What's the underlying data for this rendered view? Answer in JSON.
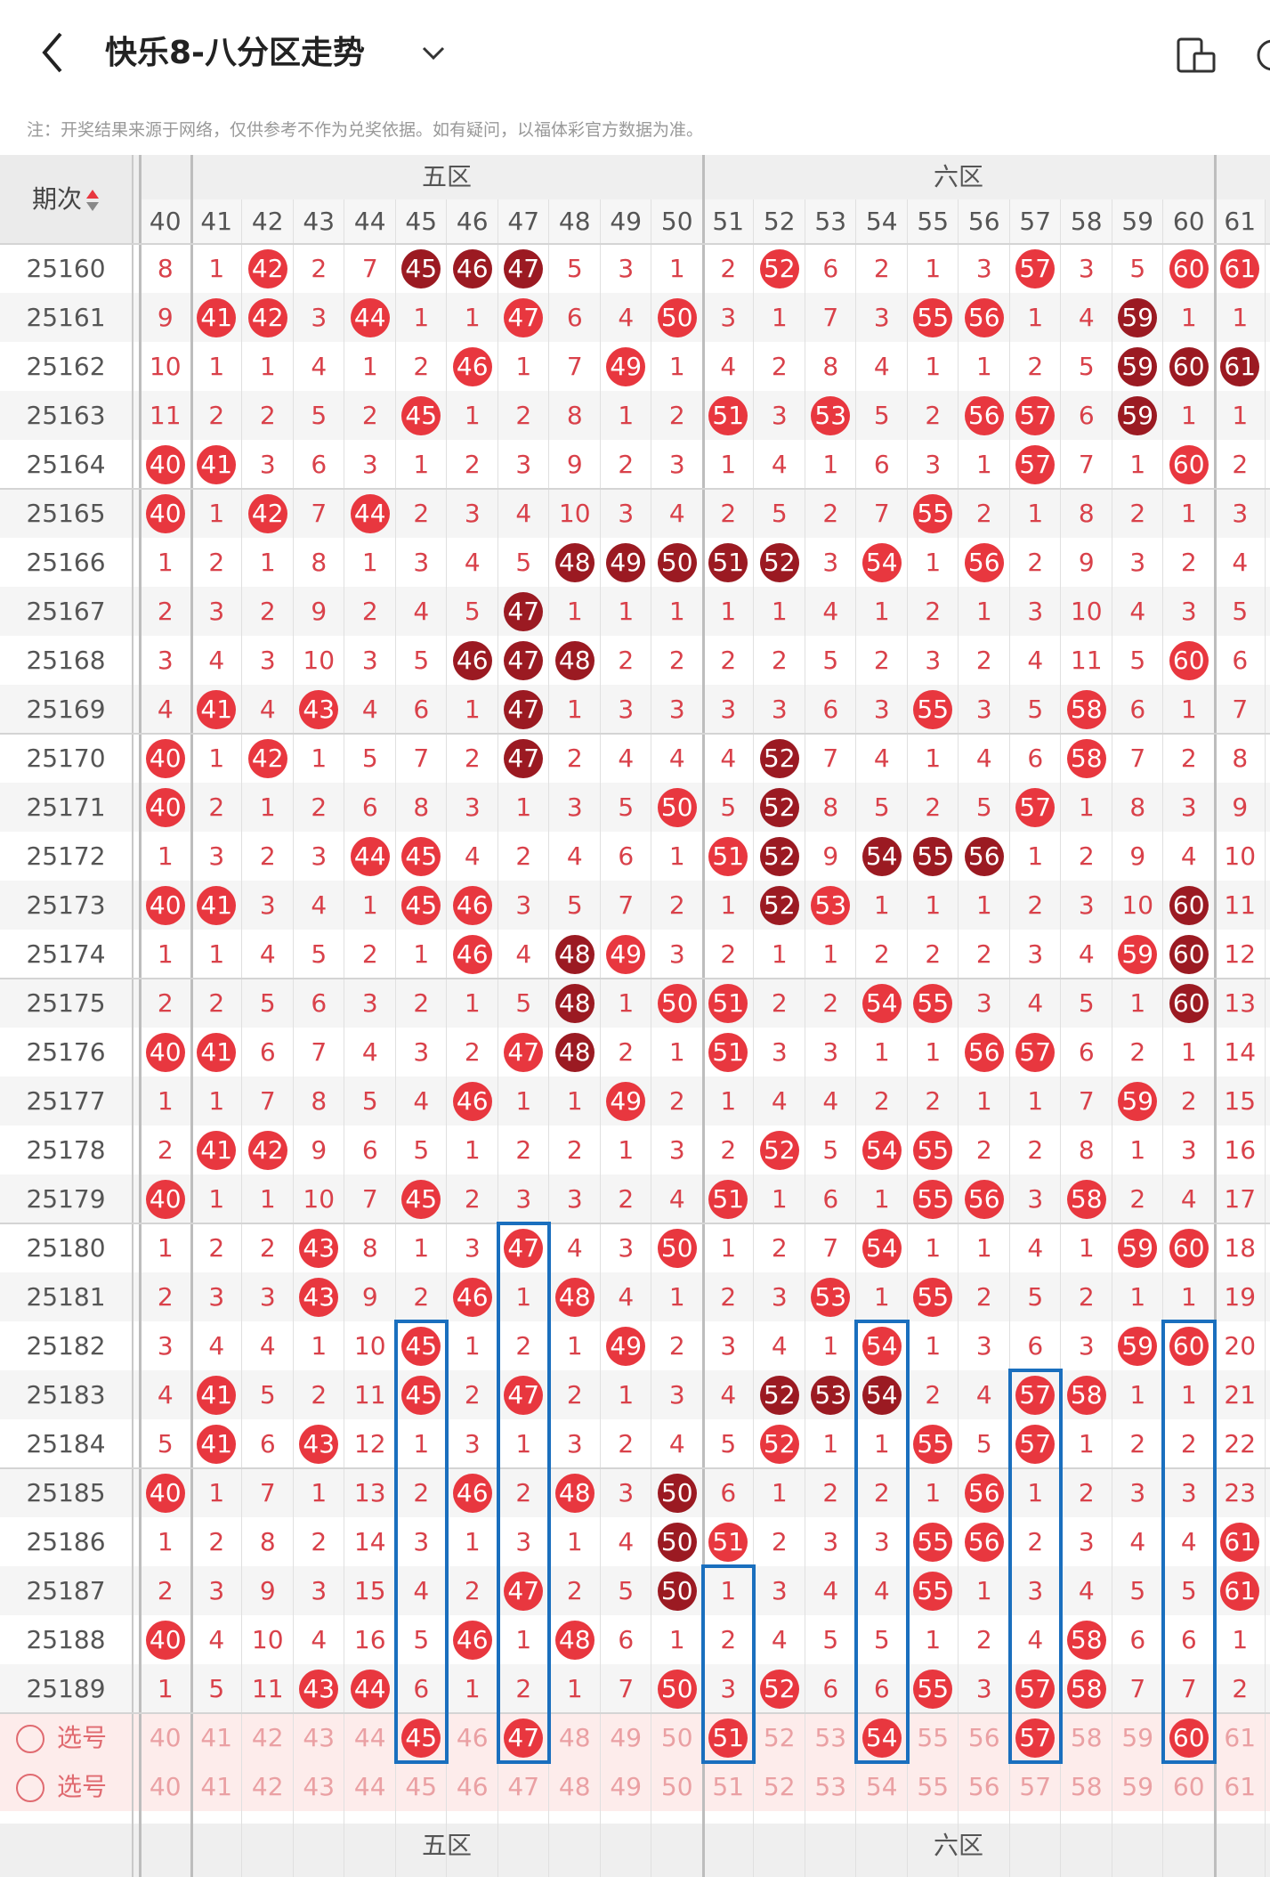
{
  "header": {
    "title": "快乐8-八分区走势",
    "back_icon": "chevron-left-icon",
    "dropdown_icon": "chevron-down-icon",
    "tool_icon": "device-layout-icon"
  },
  "notice": "注：开奖结果来源于网络，仅供参考不作为兑奖依据。如有疑问，以福体彩官方数据为准。",
  "table": {
    "period_label": "期次",
    "zones": [
      "五区",
      "六区"
    ],
    "columns": [
      40,
      41,
      42,
      43,
      44,
      45,
      46,
      47,
      48,
      49,
      50,
      51,
      52,
      53,
      54,
      55,
      56,
      57,
      58,
      59,
      60,
      61
    ],
    "rows": [
      {
        "issue": "25160",
        "cells": [
          "8",
          "1",
          "42",
          "2",
          "7",
          "45",
          "46",
          "47",
          "5",
          "3",
          "1",
          "2",
          "52",
          "6",
          "2",
          "1",
          "3",
          "57",
          "3",
          "5",
          "60",
          "61"
        ],
        "hits": [
          42,
          45,
          46,
          47,
          52,
          57,
          60,
          61
        ],
        "dark": [
          45,
          46,
          47
        ]
      },
      {
        "issue": "25161",
        "cells": [
          "9",
          "41",
          "42",
          "3",
          "44",
          "1",
          "1",
          "47",
          "6",
          "4",
          "50",
          "3",
          "1",
          "7",
          "3",
          "55",
          "56",
          "1",
          "4",
          "59",
          "1",
          "1"
        ],
        "hits": [
          41,
          42,
          44,
          47,
          50,
          55,
          56,
          59
        ],
        "dark": [
          59
        ]
      },
      {
        "issue": "25162",
        "cells": [
          "10",
          "1",
          "1",
          "4",
          "1",
          "2",
          "46",
          "1",
          "7",
          "49",
          "1",
          "4",
          "2",
          "8",
          "4",
          "1",
          "1",
          "2",
          "5",
          "59",
          "60",
          "61"
        ],
        "hits": [
          46,
          49,
          59,
          60,
          61
        ],
        "dark": [
          59,
          60,
          61
        ]
      },
      {
        "issue": "25163",
        "cells": [
          "11",
          "2",
          "2",
          "5",
          "2",
          "45",
          "1",
          "2",
          "8",
          "1",
          "2",
          "51",
          "3",
          "53",
          "5",
          "2",
          "56",
          "57",
          "6",
          "59",
          "1",
          "1"
        ],
        "hits": [
          45,
          51,
          53,
          56,
          57,
          59
        ],
        "dark": [
          59
        ]
      },
      {
        "issue": "25164",
        "cells": [
          "40",
          "41",
          "3",
          "6",
          "3",
          "1",
          "2",
          "3",
          "9",
          "2",
          "3",
          "1",
          "4",
          "1",
          "6",
          "3",
          "1",
          "57",
          "7",
          "1",
          "60",
          "2"
        ],
        "hits": [
          40,
          41,
          57,
          60
        ],
        "dark": []
      },
      {
        "issue": "25165",
        "cells": [
          "40",
          "1",
          "42",
          "7",
          "44",
          "2",
          "3",
          "4",
          "10",
          "3",
          "4",
          "2",
          "5",
          "2",
          "7",
          "55",
          "2",
          "1",
          "8",
          "2",
          "1",
          "3"
        ],
        "hits": [
          40,
          42,
          44,
          55
        ],
        "dark": []
      },
      {
        "issue": "25166",
        "cells": [
          "1",
          "2",
          "1",
          "8",
          "1",
          "3",
          "4",
          "5",
          "48",
          "49",
          "50",
          "51",
          "52",
          "3",
          "54",
          "1",
          "56",
          "2",
          "9",
          "3",
          "2",
          "4"
        ],
        "hits": [
          48,
          49,
          50,
          51,
          52,
          54,
          56
        ],
        "dark": [
          48,
          49,
          50,
          51,
          52
        ]
      },
      {
        "issue": "25167",
        "cells": [
          "2",
          "3",
          "2",
          "9",
          "2",
          "4",
          "5",
          "47",
          "1",
          "1",
          "1",
          "1",
          "1",
          "4",
          "1",
          "2",
          "1",
          "3",
          "10",
          "4",
          "3",
          "5"
        ],
        "hits": [
          47
        ],
        "dark": [
          47
        ]
      },
      {
        "issue": "25168",
        "cells": [
          "3",
          "4",
          "3",
          "10",
          "3",
          "5",
          "46",
          "47",
          "48",
          "2",
          "2",
          "2",
          "2",
          "5",
          "2",
          "3",
          "2",
          "4",
          "11",
          "5",
          "60",
          "6"
        ],
        "hits": [
          46,
          47,
          48,
          60
        ],
        "dark": [
          46,
          47,
          48
        ]
      },
      {
        "issue": "25169",
        "cells": [
          "4",
          "41",
          "4",
          "43",
          "4",
          "6",
          "1",
          "47",
          "1",
          "3",
          "3",
          "3",
          "3",
          "6",
          "3",
          "55",
          "3",
          "5",
          "58",
          "6",
          "1",
          "7"
        ],
        "hits": [
          41,
          43,
          47,
          55,
          58
        ],
        "dark": [
          47
        ]
      },
      {
        "issue": "25170",
        "cells": [
          "40",
          "1",
          "42",
          "1",
          "5",
          "7",
          "2",
          "47",
          "2",
          "4",
          "4",
          "4",
          "52",
          "7",
          "4",
          "1",
          "4",
          "6",
          "58",
          "7",
          "2",
          "8"
        ],
        "hits": [
          40,
          42,
          47,
          52,
          58
        ],
        "dark": [
          47,
          52
        ]
      },
      {
        "issue": "25171",
        "cells": [
          "40",
          "2",
          "1",
          "2",
          "6",
          "8",
          "3",
          "1",
          "3",
          "5",
          "50",
          "5",
          "52",
          "8",
          "5",
          "2",
          "5",
          "57",
          "1",
          "8",
          "3",
          "9"
        ],
        "hits": [
          40,
          50,
          52,
          57
        ],
        "dark": [
          52
        ]
      },
      {
        "issue": "25172",
        "cells": [
          "1",
          "3",
          "2",
          "3",
          "44",
          "45",
          "4",
          "2",
          "4",
          "6",
          "1",
          "51",
          "52",
          "9",
          "54",
          "55",
          "56",
          "1",
          "2",
          "9",
          "4",
          "10"
        ],
        "hits": [
          44,
          45,
          51,
          52,
          54,
          55,
          56
        ],
        "dark": [
          52,
          54,
          55,
          56
        ]
      },
      {
        "issue": "25173",
        "cells": [
          "40",
          "41",
          "3",
          "4",
          "1",
          "45",
          "46",
          "3",
          "5",
          "7",
          "2",
          "1",
          "52",
          "53",
          "1",
          "1",
          "1",
          "2",
          "3",
          "10",
          "60",
          "11"
        ],
        "hits": [
          40,
          41,
          45,
          46,
          52,
          53,
          60
        ],
        "dark": [
          52,
          60
        ]
      },
      {
        "issue": "25174",
        "cells": [
          "1",
          "1",
          "4",
          "5",
          "2",
          "1",
          "46",
          "4",
          "48",
          "49",
          "3",
          "2",
          "1",
          "1",
          "2",
          "2",
          "2",
          "3",
          "4",
          "59",
          "60",
          "12"
        ],
        "hits": [
          46,
          48,
          49,
          59,
          60
        ],
        "dark": [
          48,
          60
        ]
      },
      {
        "issue": "25175",
        "cells": [
          "2",
          "2",
          "5",
          "6",
          "3",
          "2",
          "1",
          "5",
          "48",
          "1",
          "50",
          "51",
          "2",
          "2",
          "54",
          "55",
          "3",
          "4",
          "5",
          "1",
          "60",
          "13"
        ],
        "hits": [
          48,
          50,
          51,
          54,
          55,
          60
        ],
        "dark": [
          48,
          60
        ]
      },
      {
        "issue": "25176",
        "cells": [
          "40",
          "41",
          "6",
          "7",
          "4",
          "3",
          "2",
          "47",
          "48",
          "2",
          "1",
          "51",
          "3",
          "3",
          "1",
          "1",
          "56",
          "57",
          "6",
          "2",
          "1",
          "14"
        ],
        "hits": [
          40,
          41,
          47,
          48,
          51,
          56,
          57
        ],
        "dark": [
          48
        ]
      },
      {
        "issue": "25177",
        "cells": [
          "1",
          "1",
          "7",
          "8",
          "5",
          "4",
          "46",
          "1",
          "1",
          "49",
          "2",
          "1",
          "4",
          "4",
          "2",
          "2",
          "1",
          "1",
          "7",
          "59",
          "2",
          "15"
        ],
        "hits": [
          46,
          49,
          59
        ],
        "dark": []
      },
      {
        "issue": "25178",
        "cells": [
          "2",
          "41",
          "42",
          "9",
          "6",
          "5",
          "1",
          "2",
          "2",
          "1",
          "3",
          "2",
          "52",
          "5",
          "54",
          "55",
          "2",
          "2",
          "8",
          "1",
          "3",
          "16"
        ],
        "hits": [
          41,
          42,
          52,
          54,
          55
        ],
        "dark": []
      },
      {
        "issue": "25179",
        "cells": [
          "40",
          "1",
          "1",
          "10",
          "7",
          "45",
          "2",
          "3",
          "3",
          "2",
          "4",
          "51",
          "1",
          "6",
          "1",
          "55",
          "56",
          "3",
          "58",
          "2",
          "4",
          "17"
        ],
        "hits": [
          40,
          45,
          51,
          55,
          56,
          58
        ],
        "dark": []
      },
      {
        "issue": "25180",
        "cells": [
          "1",
          "2",
          "2",
          "43",
          "8",
          "1",
          "3",
          "47",
          "4",
          "3",
          "50",
          "1",
          "2",
          "7",
          "54",
          "1",
          "1",
          "4",
          "1",
          "59",
          "60",
          "18"
        ],
        "hits": [
          43,
          47,
          50,
          54,
          59,
          60
        ],
        "dark": []
      },
      {
        "issue": "25181",
        "cells": [
          "2",
          "3",
          "3",
          "43",
          "9",
          "2",
          "46",
          "1",
          "48",
          "4",
          "1",
          "2",
          "3",
          "53",
          "1",
          "55",
          "2",
          "5",
          "2",
          "1",
          "1",
          "19"
        ],
        "hits": [
          43,
          46,
          48,
          53,
          55
        ],
        "dark": []
      },
      {
        "issue": "25182",
        "cells": [
          "3",
          "4",
          "4",
          "1",
          "10",
          "45",
          "1",
          "2",
          "1",
          "49",
          "2",
          "3",
          "4",
          "1",
          "54",
          "1",
          "3",
          "6",
          "3",
          "59",
          "60",
          "20"
        ],
        "hits": [
          45,
          49,
          54,
          59,
          60
        ],
        "dark": []
      },
      {
        "issue": "25183",
        "cells": [
          "4",
          "41",
          "5",
          "2",
          "11",
          "45",
          "2",
          "47",
          "2",
          "1",
          "3",
          "4",
          "52",
          "53",
          "54",
          "2",
          "4",
          "57",
          "58",
          "1",
          "1",
          "21"
        ],
        "hits": [
          41,
          45,
          47,
          52,
          53,
          54,
          57,
          58
        ],
        "dark": [
          52,
          53,
          54
        ]
      },
      {
        "issue": "25184",
        "cells": [
          "5",
          "41",
          "6",
          "43",
          "12",
          "1",
          "3",
          "1",
          "3",
          "2",
          "4",
          "5",
          "52",
          "1",
          "1",
          "55",
          "5",
          "57",
          "1",
          "2",
          "2",
          "22"
        ],
        "hits": [
          41,
          43,
          52,
          55,
          57
        ],
        "dark": []
      },
      {
        "issue": "25185",
        "cells": [
          "40",
          "1",
          "7",
          "1",
          "13",
          "2",
          "46",
          "2",
          "48",
          "3",
          "50",
          "6",
          "1",
          "2",
          "2",
          "1",
          "56",
          "1",
          "2",
          "3",
          "3",
          "23"
        ],
        "hits": [
          40,
          46,
          48,
          50,
          56
        ],
        "dark": [
          50
        ]
      },
      {
        "issue": "25186",
        "cells": [
          "1",
          "2",
          "8",
          "2",
          "14",
          "3",
          "1",
          "3",
          "1",
          "4",
          "50",
          "51",
          "2",
          "3",
          "3",
          "55",
          "56",
          "2",
          "3",
          "4",
          "4",
          "61"
        ],
        "hits": [
          50,
          51,
          55,
          56,
          61
        ],
        "dark": [
          50
        ]
      },
      {
        "issue": "25187",
        "cells": [
          "2",
          "3",
          "9",
          "3",
          "15",
          "4",
          "2",
          "47",
          "2",
          "5",
          "50",
          "1",
          "3",
          "4",
          "4",
          "55",
          "1",
          "3",
          "4",
          "5",
          "5",
          "61"
        ],
        "hits": [
          47,
          50,
          55,
          61
        ],
        "dark": [
          50
        ]
      },
      {
        "issue": "25188",
        "cells": [
          "40",
          "4",
          "10",
          "4",
          "16",
          "5",
          "46",
          "1",
          "48",
          "6",
          "1",
          "2",
          "4",
          "5",
          "5",
          "1",
          "2",
          "4",
          "58",
          "6",
          "6",
          "1"
        ],
        "hits": [
          40,
          46,
          48,
          58
        ],
        "dark": []
      },
      {
        "issue": "25189",
        "cells": [
          "1",
          "5",
          "11",
          "43",
          "44",
          "6",
          "1",
          "2",
          "1",
          "7",
          "50",
          "3",
          "52",
          "6",
          "6",
          "55",
          "3",
          "57",
          "58",
          "7",
          "7",
          "2"
        ],
        "hits": [
          43,
          44,
          50,
          52,
          55,
          57,
          58
        ],
        "dark": []
      }
    ],
    "select_rows": [
      {
        "label": "选号",
        "selected": [
          45,
          47,
          51,
          54,
          57,
          60
        ]
      },
      {
        "label": "选号",
        "selected": []
      }
    ],
    "colors": {
      "red": "#e8373f",
      "dark": "#9b1a22",
      "box": "#1a6fbe"
    }
  }
}
